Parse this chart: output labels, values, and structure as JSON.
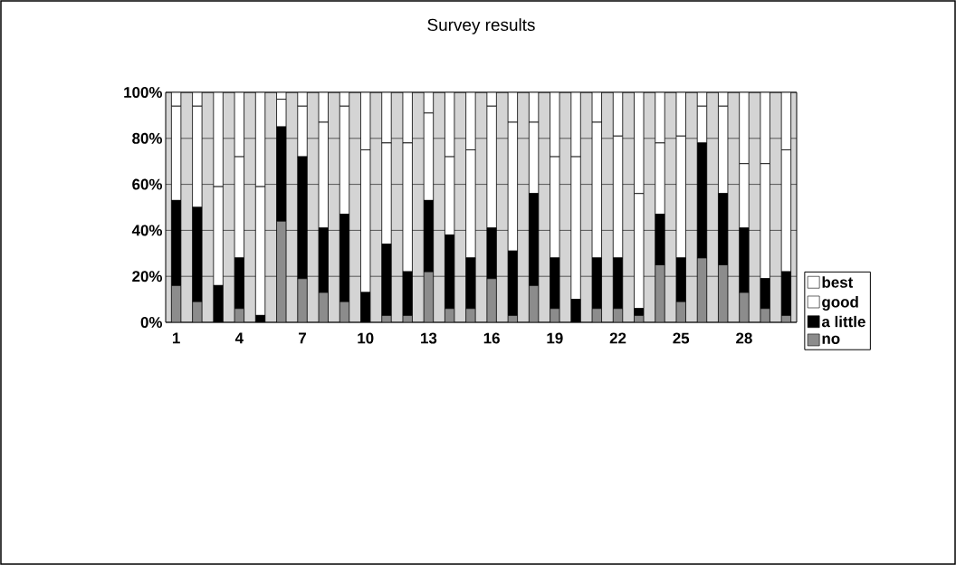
{
  "chart_data": {
    "type": "bar",
    "title": "Survey results",
    "stacked": true,
    "grid": "y",
    "legend": "right",
    "categories": [
      "1",
      null,
      null,
      "4",
      null,
      null,
      "7",
      null,
      null,
      "10",
      null,
      null,
      "13",
      null,
      null,
      "16",
      null,
      null,
      "19",
      null,
      null,
      "22",
      null,
      null,
      "25",
      null,
      null,
      "28",
      null,
      null
    ],
    "series": [
      {
        "name": "no",
        "color": "#8c8c8c",
        "values": [
          16,
          9,
          0,
          6,
          0,
          44,
          19,
          13,
          9,
          0,
          3,
          3,
          22,
          6,
          6,
          19,
          3,
          16,
          6,
          0,
          6,
          6,
          3,
          25,
          9,
          28,
          25,
          13,
          6,
          3
        ]
      },
      {
        "name": "a little",
        "color": "#000000",
        "values": [
          37,
          41,
          16,
          22,
          3,
          41,
          53,
          28,
          38,
          13,
          31,
          19,
          31,
          32,
          22,
          22,
          28,
          40,
          22,
          10,
          22,
          22,
          3,
          22,
          19,
          50,
          31,
          28,
          13,
          19
        ]
      },
      {
        "name": "good",
        "color": "#ffffff",
        "values": [
          41,
          44,
          43,
          44,
          56,
          12,
          22,
          46,
          47,
          62,
          44,
          56,
          38,
          34,
          47,
          53,
          56,
          31,
          44,
          62,
          59,
          53,
          50,
          31,
          53,
          16,
          38,
          28,
          50,
          53
        ]
      },
      {
        "name": "best",
        "color": "#ffffff",
        "values": [
          6,
          6,
          41,
          28,
          41,
          3,
          6,
          13,
          6,
          25,
          22,
          22,
          9,
          28,
          25,
          6,
          13,
          13,
          28,
          28,
          13,
          19,
          44,
          22,
          19,
          6,
          6,
          31,
          31,
          25
        ]
      }
    ],
    "ylim": [
      0,
      100
    ],
    "yticks": [
      {
        "value": 0,
        "label": "0%"
      },
      {
        "value": 20,
        "label": "20%"
      },
      {
        "value": 40,
        "label": "40%"
      },
      {
        "value": 60,
        "label": "60%"
      },
      {
        "value": 80,
        "label": "80%"
      },
      {
        "value": 100,
        "label": "100%"
      }
    ]
  }
}
